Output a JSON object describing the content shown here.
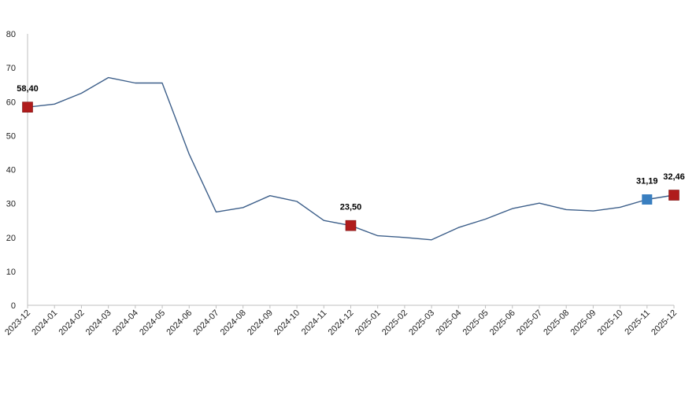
{
  "chart_data": {
    "type": "line",
    "categories": [
      "2023-12",
      "2024-01",
      "2024-02",
      "2024-03",
      "2024-04",
      "2024-05",
      "2024-06",
      "2024-07",
      "2024-08",
      "2024-09",
      "2024-10",
      "2024-11",
      "2024-12",
      "2025-01",
      "2025-02",
      "2025-03",
      "2025-04",
      "2025-05",
      "2025-06",
      "2025-07",
      "2025-08",
      "2025-09",
      "2025-10",
      "2025-11",
      "2025-12"
    ],
    "series": [
      {
        "values": [
          58.4,
          59.3,
          62.5,
          67.1,
          65.5,
          65.5,
          44.5,
          27.5,
          28.8,
          32.3,
          30.6,
          25.0,
          23.5,
          20.5,
          20.0,
          19.3,
          22.9,
          25.4,
          28.5,
          30.1,
          28.2,
          27.8,
          28.9,
          31.19,
          32.46
        ],
        "color": "#3d5f8a"
      }
    ],
    "highlighted_points": [
      {
        "index": 0,
        "label": "58,40",
        "color": "#b01c1c"
      },
      {
        "index": 12,
        "label": "23,50",
        "color": "#b01c1c"
      },
      {
        "index": 23,
        "label": "31,19",
        "color": "#3a7fc0"
      },
      {
        "index": 24,
        "label": "32,46",
        "color": "#b01c1c"
      }
    ],
    "yticks": [
      "0",
      "10",
      "20",
      "30",
      "40",
      "50",
      "60",
      "70",
      "80"
    ],
    "ylim": [
      0,
      80
    ],
    "grid": false,
    "title": "",
    "xlabel": "",
    "ylabel": ""
  }
}
